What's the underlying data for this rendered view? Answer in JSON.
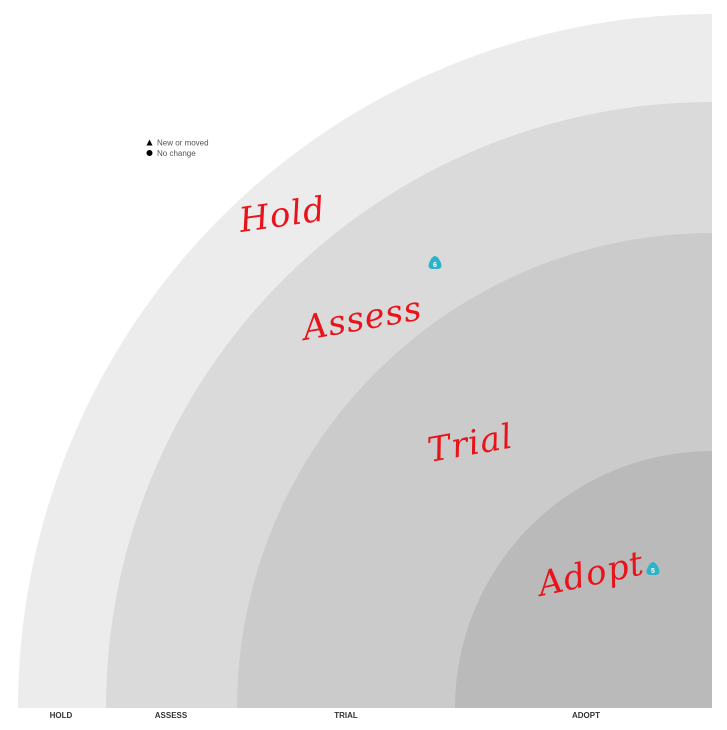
{
  "legend": {
    "new_or_moved": "New or moved",
    "no_change": "No change"
  },
  "rings": {
    "hold": "Hold",
    "assess": "Assess",
    "trial": "Trial",
    "adopt": "Adopt"
  },
  "axis": {
    "hold": "HOLD",
    "assess": "ASSESS",
    "trial": "TRIAL",
    "adopt": "ADOPT"
  },
  "blips": [
    {
      "number": "6",
      "ring": "Assess",
      "shape": "triangle"
    },
    {
      "number": "5",
      "ring": "Adopt",
      "shape": "triangle"
    }
  ],
  "colors": {
    "ring_hold": "#ececec",
    "ring_assess": "#dadada",
    "ring_trial": "#cbcbcb",
    "ring_adopt": "#bababa",
    "annotation": "#e8141b",
    "blip": "#2bb3c9"
  }
}
